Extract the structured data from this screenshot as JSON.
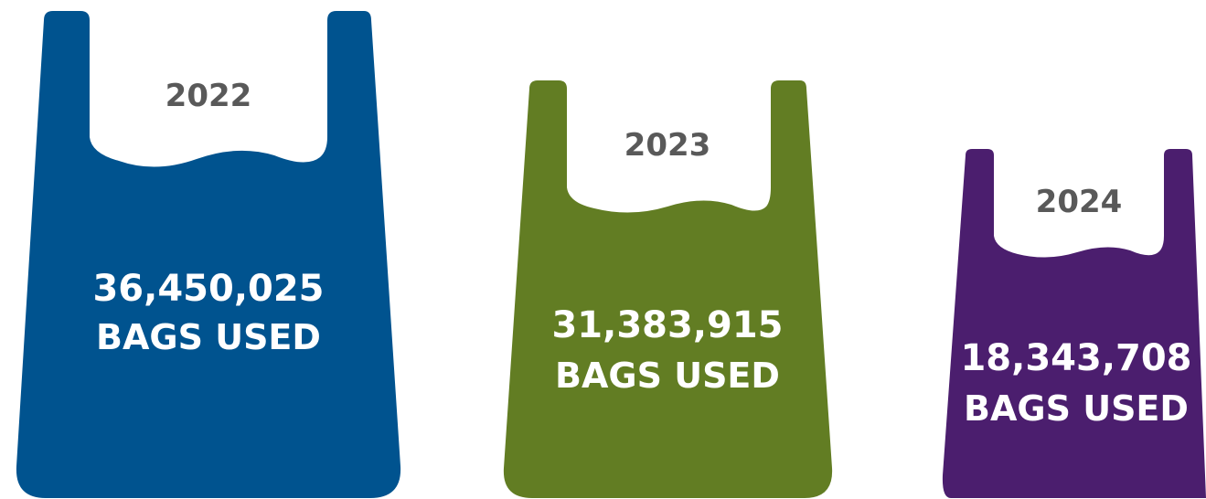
{
  "bags": [
    {
      "year": "2022",
      "count": "36,450,025",
      "caption": "BAGS USED",
      "value": 36450025,
      "color": "#00538f"
    },
    {
      "year": "2023",
      "count": "31,383,915",
      "caption": "BAGS USED",
      "value": 31383915,
      "color": "#627d23"
    },
    {
      "year": "2024",
      "count": "18,343,708",
      "caption": "BAGS USED",
      "value": 18343708,
      "color": "#4b1e6e"
    }
  ]
}
